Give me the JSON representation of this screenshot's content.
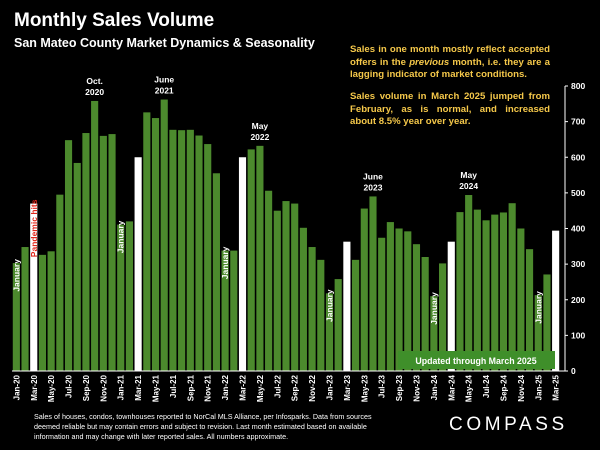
{
  "title": "Monthly Sales Volume",
  "subtitle": "San Mateo County Market Dynamics & Seasonality",
  "note": {
    "p1_before": "Sales in one month mostly reflect accepted offers in the ",
    "p1_italic": "previous",
    "p1_after": " month, i.e. they are a lagging indicator of market conditions.",
    "p2": "Sales volume in March 2025 jumped from February, as is normal, and increased about 8.5% year over year."
  },
  "footnote": "Sales of houses, condos, townhouses reported to NorCal MLS Alliance, per Infosparks. Data from sources deemed reliable but may contain errors and subject to revision. Last month estimated based on available information and may change with later reported sales. All numbers approximate.",
  "logo": "COMPASS",
  "colors": {
    "bar": "#4c8a2d",
    "highlight": "#ffffff",
    "note": "#f5c84a",
    "pandemic": "#e0261b",
    "banner": "#3f8f2a"
  },
  "chart_data": {
    "type": "bar",
    "x": [
      "Jan-20",
      "Feb-20",
      "Mar-20",
      "Apr-20",
      "May-20",
      "Jun-20",
      "Jul-20",
      "Aug-20",
      "Sep-20",
      "Oct-20",
      "Nov-20",
      "Dec-20",
      "Jan-21",
      "Feb-21",
      "Mar-21",
      "Apr-21",
      "May-21",
      "Jun-21",
      "Jul-21",
      "Aug-21",
      "Sep-21",
      "Oct-21",
      "Nov-21",
      "Dec-21",
      "Jan-22",
      "Feb-22",
      "Mar-22",
      "Apr-22",
      "May-22",
      "Jun-22",
      "Jul-22",
      "Aug-22",
      "Sep-22",
      "Oct-22",
      "Nov-22",
      "Dec-22",
      "Jan-23",
      "Feb-23",
      "Mar-23",
      "Apr-23",
      "May-23",
      "Jun-23",
      "Jul-23",
      "Aug-23",
      "Sep-23",
      "Oct-23",
      "Nov-23",
      "Dec-23",
      "Jan-24",
      "Feb-24",
      "Mar-24",
      "Apr-24",
      "May-24",
      "Jun-24",
      "Jul-24",
      "Aug-24",
      "Sep-24",
      "Oct-24",
      "Nov-24",
      "Dec-24",
      "Jan-25",
      "Feb-25",
      "Mar-25"
    ],
    "values": [
      303,
      348,
      470,
      326,
      336,
      495,
      648,
      584,
      668,
      758,
      660,
      665,
      411,
      420,
      600,
      726,
      710,
      762,
      677,
      676,
      677,
      661,
      637,
      555,
      338,
      338,
      600,
      622,
      632,
      506,
      450,
      477,
      470,
      402,
      348,
      312,
      218,
      258,
      363,
      312,
      456,
      490,
      374,
      418,
      400,
      392,
      356,
      320,
      210,
      302,
      363,
      446,
      494,
      453,
      423,
      439,
      445,
      471,
      400,
      342,
      213,
      271,
      394
    ],
    "highlighted": [
      "Mar-20",
      "Mar-21",
      "Mar-22",
      "Mar-23",
      "Mar-24",
      "Mar-25"
    ],
    "x_tick_labels": [
      "Jan-20",
      "Mar-20",
      "May-20",
      "Jul-20",
      "Sep-20",
      "Nov-20",
      "Jan-21",
      "Mar-21",
      "May-21",
      "Jul-21",
      "Sep-21",
      "Nov-21",
      "Jan-22",
      "Mar-22",
      "May-22",
      "Jul-22",
      "Sep-22",
      "Nov-22",
      "Jan-23",
      "Mar-23",
      "May-23",
      "Jul-23",
      "Sep-23",
      "Nov-23",
      "Jan-24",
      "Mar-24",
      "May-24",
      "Jul-24",
      "Sep-24",
      "Nov-24",
      "Jan-25",
      "Mar-25"
    ],
    "ylim": [
      0,
      800
    ],
    "y_ticks": [
      0,
      100,
      200,
      300,
      400,
      500,
      600,
      700,
      800
    ],
    "grid": false,
    "annotations": [
      {
        "text": "January",
        "at": "Jan-20",
        "color": "white"
      },
      {
        "text": "Pandemic hits",
        "at": "Mar-20",
        "color": "red"
      },
      {
        "text": "Oct.\n2020",
        "at": "Oct-20",
        "color": "white"
      },
      {
        "text": "January",
        "at": "Jan-21",
        "color": "white"
      },
      {
        "text": "June\n2021",
        "at": "Jun-21",
        "color": "white"
      },
      {
        "text": "January",
        "at": "Jan-22",
        "color": "white"
      },
      {
        "text": "May\n2022",
        "at": "May-22",
        "color": "white"
      },
      {
        "text": "January",
        "at": "Jan-23",
        "color": "white"
      },
      {
        "text": "June\n2023",
        "at": "Jun-23",
        "color": "white"
      },
      {
        "text": "January",
        "at": "Jan-24",
        "color": "white"
      },
      {
        "text": "May\n2024",
        "at": "May-24",
        "color": "white"
      },
      {
        "text": "January",
        "at": "Jan-25",
        "color": "white"
      }
    ],
    "banner": "Updated through March 2025"
  }
}
